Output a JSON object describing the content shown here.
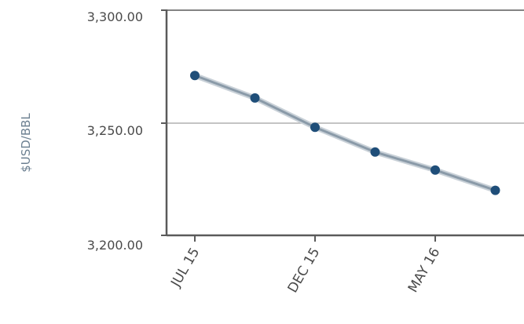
{
  "chart_data": {
    "type": "line",
    "title": "",
    "xlabel": "",
    "ylabel": "$USD/BBL",
    "ylim": [
      3200,
      3300
    ],
    "y_ticks": [
      "3,300.00",
      "3,250.00",
      "3,200.00"
    ],
    "x_tick_labels": [
      "JUL 15",
      "DEC 15",
      "MAY 16"
    ],
    "x": [
      "Jul 15",
      "Sep 15",
      "Dec 15",
      "Feb 16",
      "May 16",
      "Jul 16"
    ],
    "series": [
      {
        "values": [
          3271,
          3261,
          3248,
          3237,
          3229,
          3220
        ]
      }
    ],
    "grid": "horizontal line at 3,250.00",
    "colors": {
      "line": "#8a9aa8",
      "marker": "#1f4e79",
      "axis": "#5a5a5a",
      "grid": "#b0b0b0"
    }
  }
}
